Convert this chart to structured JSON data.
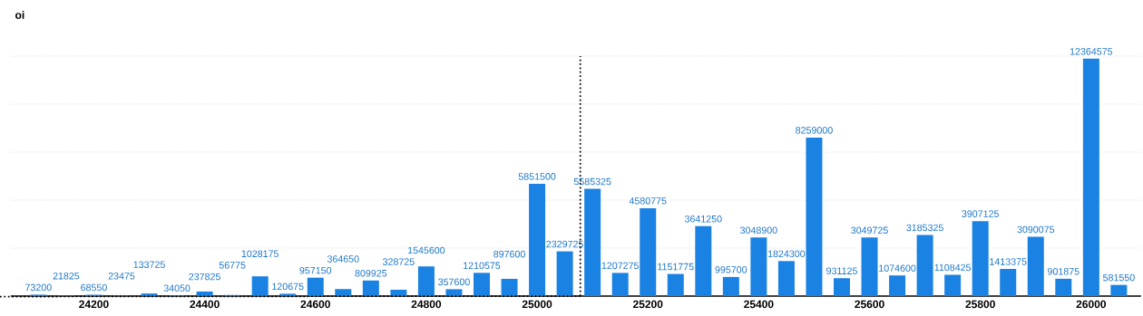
{
  "chart_data": {
    "type": "bar",
    "ylabel": "oi",
    "x": [
      24100,
      24150,
      24200,
      24250,
      24300,
      24350,
      24400,
      24450,
      24500,
      24550,
      24600,
      24650,
      24700,
      24750,
      24800,
      24850,
      24900,
      24950,
      25000,
      25050,
      25100,
      25150,
      25200,
      25250,
      25300,
      25350,
      25400,
      25450,
      25500,
      25550,
      25600,
      25650,
      25700,
      25750,
      25800,
      25850,
      25900,
      25950,
      26000,
      26050
    ],
    "series": [
      {
        "color": "#1a82e2",
        "values": [
          73200,
          21825,
          68550,
          23475,
          133725,
          34050,
          237825,
          56775,
          1028175,
          120675,
          957150,
          364650,
          809925,
          328725,
          1545600,
          357600,
          1210575,
          897600,
          5851500,
          2329725,
          5585325,
          1207275,
          4580775,
          1151775,
          3641250,
          995700,
          3048900,
          1824300,
          8259000,
          931125,
          3049725,
          1074600,
          3185325,
          1108425,
          3907125,
          1413375,
          3090075,
          901875,
          12364575,
          581550
        ]
      }
    ],
    "data_labels": true,
    "xlim": [
      24050,
      26090
    ],
    "xticks": [
      24200,
      24400,
      24600,
      24800,
      25000,
      25200,
      25400,
      25600,
      25800,
      26000
    ],
    "ylim": [
      0,
      12500000
    ],
    "yticks": [
      {
        "value": 0,
        "label": null
      },
      {
        "value": 2500000,
        "label": null
      },
      {
        "value": 5000000,
        "label": null
      },
      {
        "value": 7500000,
        "label": null
      },
      {
        "value": 10000000,
        "label": null
      },
      {
        "value": 12500000,
        "label": null
      }
    ],
    "tick_labels": "x",
    "grid": "y",
    "ref_lines": [
      {
        "axis": "x",
        "value": 25078,
        "color": "#000000",
        "line_style": "dotted"
      }
    ]
  }
}
